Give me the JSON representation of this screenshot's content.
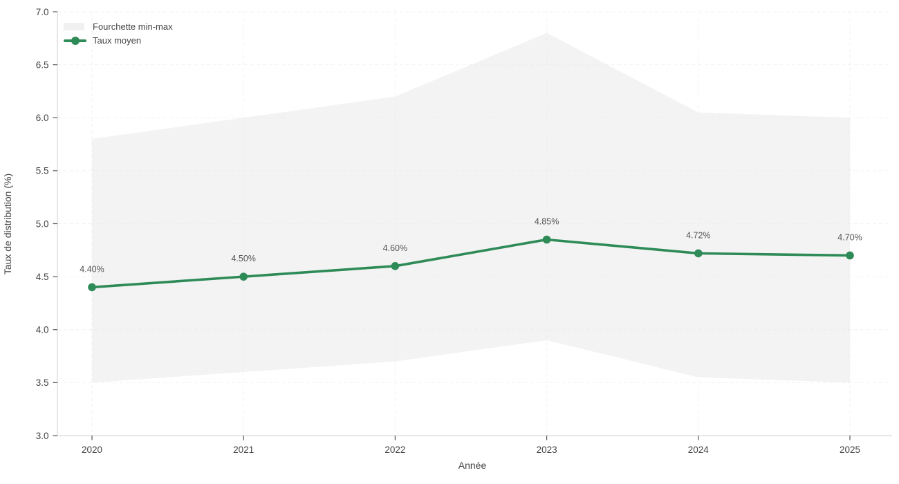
{
  "chart_data": {
    "type": "line",
    "categories": [
      "2020",
      "2021",
      "2022",
      "2023",
      "2024",
      "2025"
    ],
    "series": [
      {
        "name": "Fourchette min-max",
        "type": "band",
        "min": [
          3.5,
          3.6,
          3.7,
          3.9,
          3.55,
          3.5
        ],
        "max": [
          5.8,
          6.0,
          6.2,
          6.8,
          6.05,
          6.0
        ]
      },
      {
        "name": "Taux moyen",
        "type": "line",
        "values": [
          4.4,
          4.5,
          4.6,
          4.85,
          4.72,
          4.7
        ],
        "point_labels": [
          "4.40%",
          "4.50%",
          "4.60%",
          "4.85%",
          "4.72%",
          "4.70%"
        ]
      }
    ],
    "xlabel": "Année",
    "ylabel": "Taux de distribution (%)",
    "ylim": [
      3.0,
      7.0
    ],
    "ytick_labels": [
      "3.0",
      "3.5",
      "4.0",
      "4.5",
      "5.0",
      "5.5",
      "6.0",
      "6.5",
      "7.0"
    ],
    "grid": "dashed",
    "legend_position": "top-left",
    "colors": {
      "line": "#2e8b57",
      "band_fill": "#f3f3f3",
      "gridline": "#e8e8e8",
      "axis_line": "#d9d9d9",
      "tick_text": "#444444",
      "data_label_text": "#555555"
    }
  }
}
